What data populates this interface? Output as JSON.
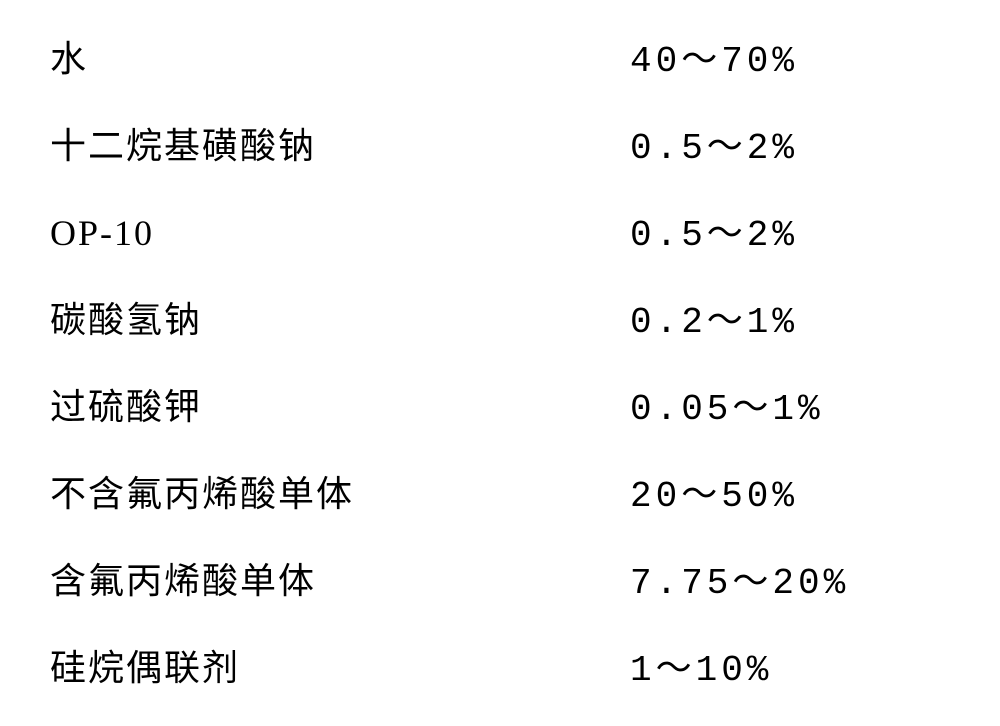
{
  "table": {
    "type": "table",
    "rows": [
      {
        "label": "水",
        "value": "40～70%"
      },
      {
        "label": "十二烷基磺酸钠",
        "value": "0.5～2%"
      },
      {
        "label": "OP-10",
        "value": "0.5～2%"
      },
      {
        "label": "碳酸氢钠",
        "value": "0.2～1%"
      },
      {
        "label": "过硫酸钾",
        "value": "0.05～1%"
      },
      {
        "label": "不含氟丙烯酸单体",
        "value": "20～50%"
      },
      {
        "label": "含氟丙烯酸单体",
        "value": "7.75～20%"
      },
      {
        "label": "硅烷偶联剂",
        "value": "1～10%"
      }
    ],
    "styling": {
      "background_color": "#ffffff",
      "text_color": "#000000",
      "font_family": "SimSun",
      "label_fontsize": 36,
      "value_fontsize": 36,
      "row_spacing": 35,
      "label_letter_spacing": 2,
      "value_letter_spacing": 4
    }
  }
}
